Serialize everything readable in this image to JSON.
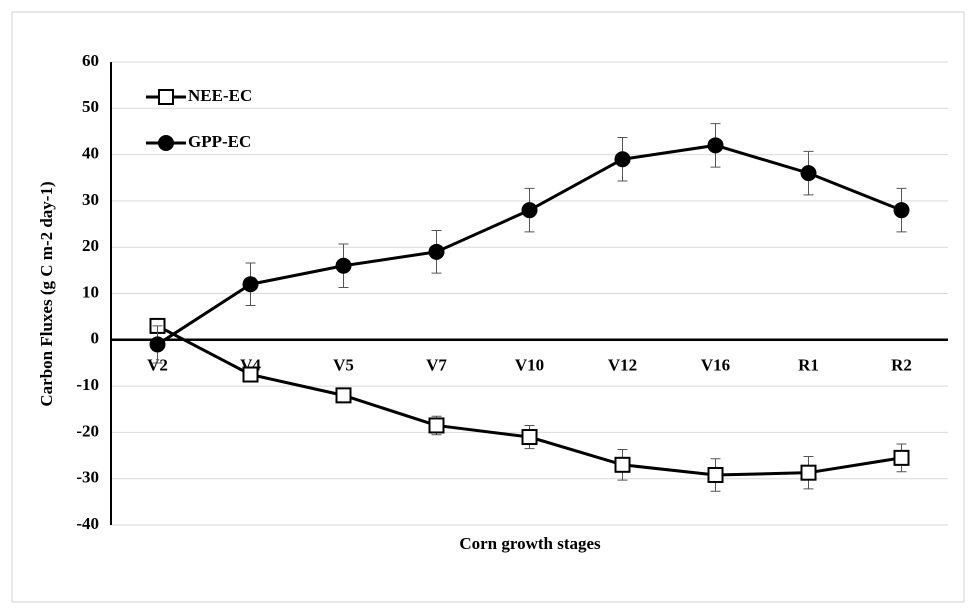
{
  "chart_data": {
    "type": "line",
    "x_label": "Corn growth stages",
    "y_label": "Carbon Fluxes (g C m-2 day-1)",
    "categories": [
      "V2",
      "V4",
      "V5",
      "V7",
      "V10",
      "V12",
      "V16",
      "R1",
      "R2"
    ],
    "series": [
      {
        "name": "NEE-EC",
        "color": "#000000",
        "marker": "square",
        "values": [
          3,
          -7.5,
          -12,
          -18.5,
          -21,
          -27,
          -29.2,
          -28.7,
          -25.5
        ],
        "errors": [
          1,
          1,
          1,
          2,
          2.5,
          3.3,
          3.5,
          3.5,
          3
        ]
      },
      {
        "name": "GPP-EC",
        "color": "#000000",
        "marker": "circle",
        "values": [
          -1,
          12,
          16,
          19,
          28,
          39,
          42,
          36,
          28
        ],
        "errors": [
          4,
          4.6,
          4.7,
          4.6,
          4.7,
          4.7,
          4.7,
          4.7,
          4.7
        ]
      }
    ],
    "ylim": [
      -40,
      60
    ],
    "yticks": [
      -40,
      -30,
      -20,
      -10,
      0,
      10,
      20,
      30,
      40,
      50,
      60
    ],
    "grid": true,
    "legend": "top-left"
  }
}
